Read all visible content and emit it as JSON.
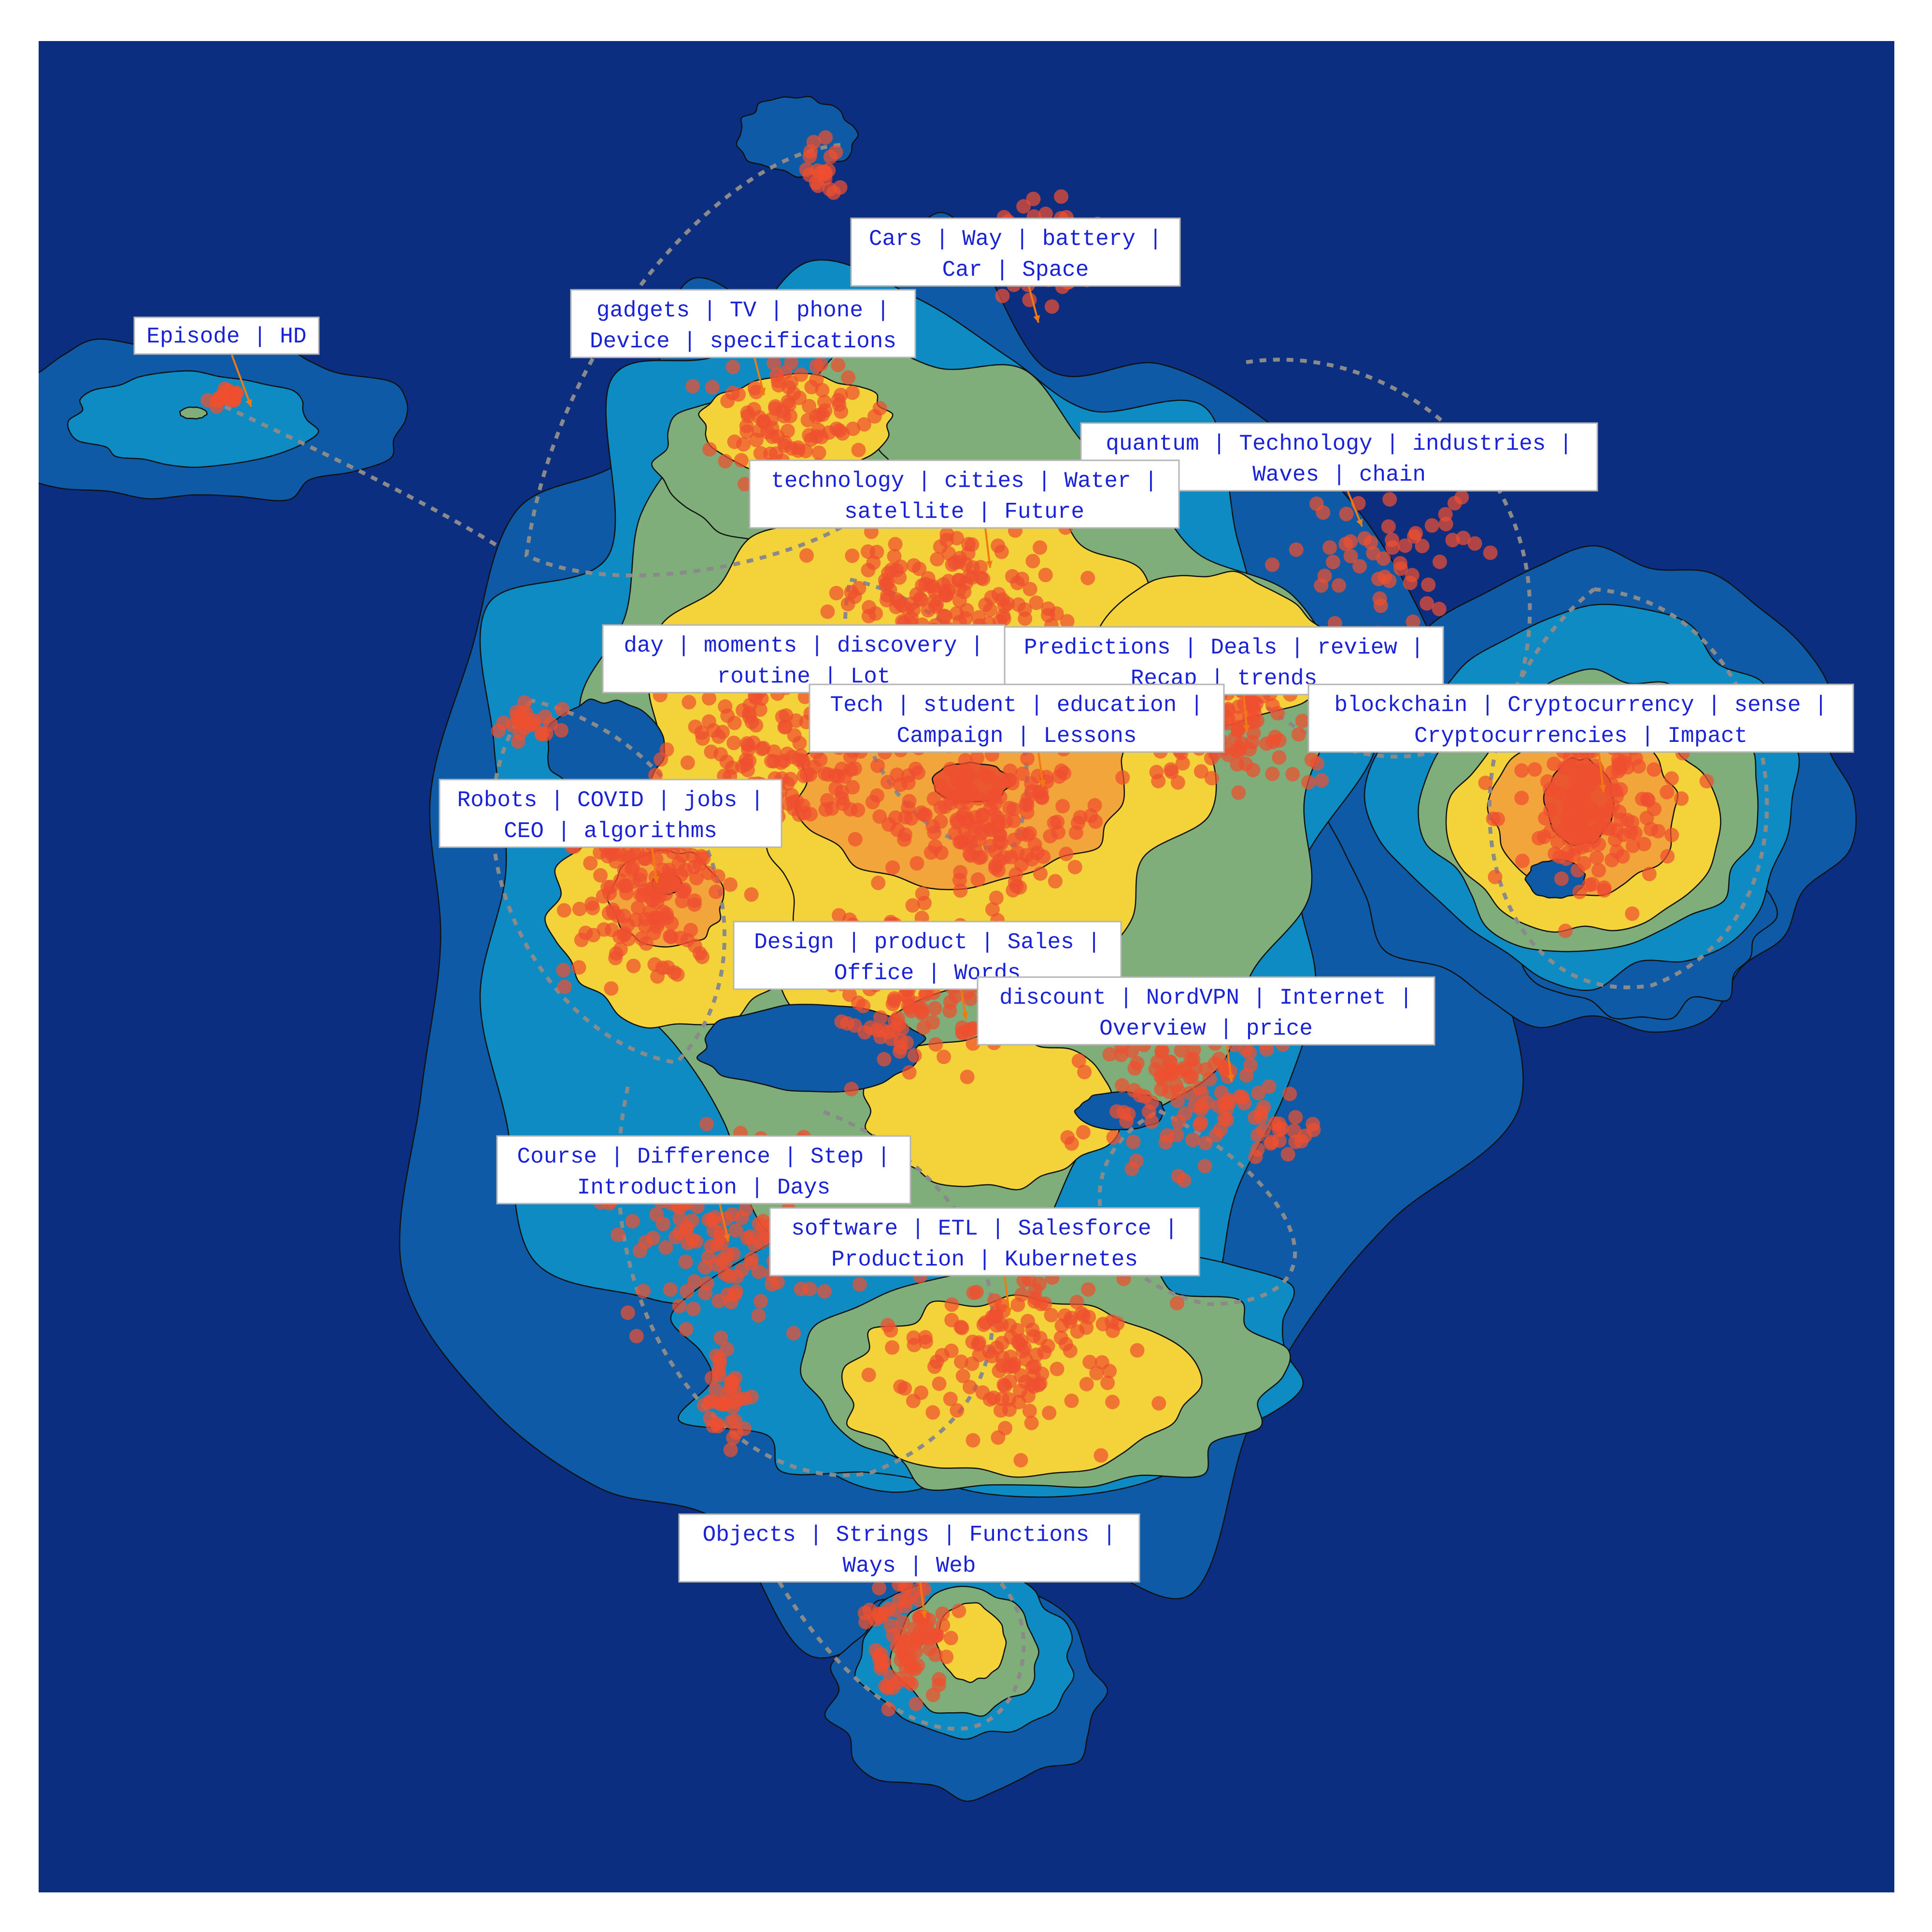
{
  "chart_data": {
    "type": "scatter",
    "title": "",
    "xlabel": "",
    "ylabel": "",
    "grid": false,
    "legend": "none",
    "colors": {
      "background": "#0c2e80",
      "density_levels": [
        "#0c2e80",
        "#0e5aa6",
        "#0f8bc3",
        "#7fae7a",
        "#f4d33a",
        "#f2a53a",
        "#e9582e"
      ],
      "points": "#ef4f2f",
      "label_text": "#1a22d6",
      "label_border": "#b5b5b5",
      "leader_arrow": "#f07a12",
      "cluster_outline": "#8a8a8a"
    },
    "topic_labels": [
      {
        "line1": "Episode | HD",
        "line2": ""
      },
      {
        "line1": "Cars | Way | battery |",
        "line2": "Car | Space"
      },
      {
        "line1": "gadgets | TV | phone |",
        "line2": "Device | specifications"
      },
      {
        "line1": "quantum | Technology | industries |",
        "line2": "Waves | chain"
      },
      {
        "line1": "technology | cities | Water |",
        "line2": "satellite | Future"
      },
      {
        "line1": "day | moments | discovery |",
        "line2": "routine | Lot"
      },
      {
        "line1": "Predictions | Deals | review |",
        "line2": "Recap | trends"
      },
      {
        "line1": "Tech | student | education |",
        "line2": "Campaign | Lessons"
      },
      {
        "line1": "blockchain | Cryptocurrency | sense |",
        "line2": "Cryptocurrencies | Impact"
      },
      {
        "line1": "Robots | COVID | jobs |",
        "line2": "CEO | algorithms"
      },
      {
        "line1": "Design | product | Sales |",
        "line2": "Office | Words"
      },
      {
        "line1": "discount | NordVPN | Internet |",
        "line2": "Overview | price"
      },
      {
        "line1": "Course | Difference | Step |",
        "line2": "Introduction | Days"
      },
      {
        "line1": "software | ETL | Salesforce |",
        "line2": "Production | Kubernetes"
      },
      {
        "line1": "Objects | Strings | Functions |",
        "line2": "Ways | Web"
      }
    ]
  }
}
